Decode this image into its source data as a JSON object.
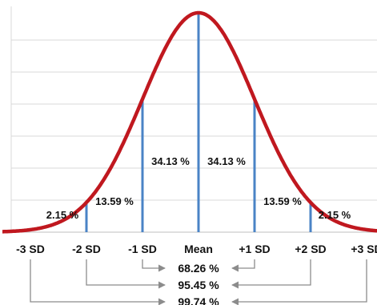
{
  "chart_data": {
    "type": "area",
    "distribution": "normal",
    "mean": 0,
    "sd": 1,
    "xlim": [
      -3.5,
      3.5
    ],
    "grid": "horizontal",
    "colors": {
      "curve": "#c0181f",
      "lines": "#4a83c6",
      "grid": "#d9d9d9",
      "arrows": "#8c8c8c"
    },
    "tick_labels": [
      {
        "x": -3,
        "label": "-3 SD"
      },
      {
        "x": -2,
        "label": "-2 SD"
      },
      {
        "x": -1,
        "label": "-1 SD"
      },
      {
        "x": 0,
        "label": "Mean"
      },
      {
        "x": 1,
        "label": "+1 SD"
      },
      {
        "x": 2,
        "label": "+2 SD"
      },
      {
        "x": 3,
        "label": "+3 SD"
      }
    ],
    "vertical_lines_at": [
      -2,
      -1,
      0,
      1,
      2
    ],
    "region_labels": [
      {
        "from": -3,
        "to": -2,
        "value": 2.15,
        "text": "2.15 %"
      },
      {
        "from": -2,
        "to": -1,
        "value": 13.59,
        "text": "13.59 %"
      },
      {
        "from": -1,
        "to": 0,
        "value": 34.13,
        "text": "34.13 %"
      },
      {
        "from": 0,
        "to": 1,
        "value": 34.13,
        "text": "34.13 %"
      },
      {
        "from": 1,
        "to": 2,
        "value": 13.59,
        "text": "13.59 %"
      },
      {
        "from": 2,
        "to": 3,
        "value": 2.15,
        "text": "2.15 %"
      }
    ],
    "cumulative": [
      {
        "from": -1,
        "to": 1,
        "value": 68.26,
        "text": "68.26 %"
      },
      {
        "from": -2,
        "to": 2,
        "value": 95.45,
        "text": "95.45 %"
      },
      {
        "from": -3,
        "to": 3,
        "value": 99.74,
        "text": "99.74 %"
      }
    ]
  }
}
